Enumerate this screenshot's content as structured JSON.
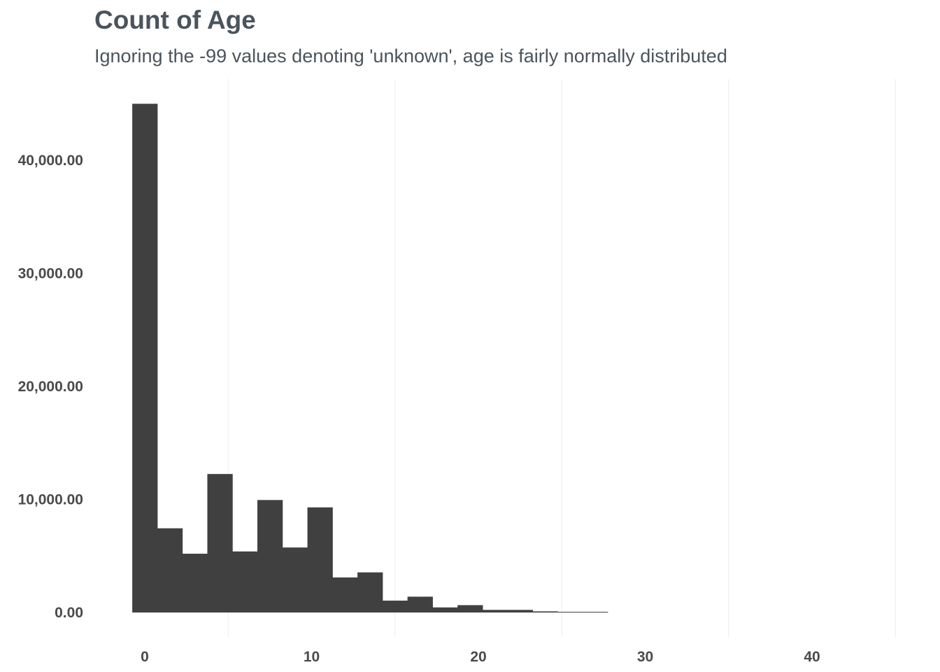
{
  "chart_data": {
    "type": "bar",
    "title": "Count of Age",
    "subtitle": "Ignoring the -99 values denoting 'unknown', age is fairly normally distributed",
    "xlabel": "",
    "ylabel": "",
    "bin_width": 1.5,
    "bins": [
      {
        "x0": -0.75,
        "x1": 0.75,
        "count": 45000
      },
      {
        "x0": 0.75,
        "x1": 2.25,
        "count": 7450
      },
      {
        "x0": 2.25,
        "x1": 3.75,
        "count": 5200
      },
      {
        "x0": 3.75,
        "x1": 5.25,
        "count": 12250
      },
      {
        "x0": 5.25,
        "x1": 6.75,
        "count": 5400
      },
      {
        "x0": 6.75,
        "x1": 8.25,
        "count": 9950
      },
      {
        "x0": 8.25,
        "x1": 9.75,
        "count": 5750
      },
      {
        "x0": 9.75,
        "x1": 11.25,
        "count": 9300
      },
      {
        "x0": 11.25,
        "x1": 12.75,
        "count": 3100
      },
      {
        "x0": 12.75,
        "x1": 14.25,
        "count": 3550
      },
      {
        "x0": 14.25,
        "x1": 15.75,
        "count": 1050
      },
      {
        "x0": 15.75,
        "x1": 17.25,
        "count": 1400
      },
      {
        "x0": 17.25,
        "x1": 18.75,
        "count": 450
      },
      {
        "x0": 18.75,
        "x1": 20.25,
        "count": 650
      },
      {
        "x0": 20.25,
        "x1": 21.75,
        "count": 230
      },
      {
        "x0": 21.75,
        "x1": 23.25,
        "count": 230
      },
      {
        "x0": 23.25,
        "x1": 24.75,
        "count": 100
      },
      {
        "x0": 24.75,
        "x1": 26.25,
        "count": 60
      },
      {
        "x0": 26.25,
        "x1": 27.75,
        "count": 40
      }
    ],
    "x_ticks": [
      0,
      10,
      20,
      30,
      40
    ],
    "x_tick_labels": [
      "0",
      "10",
      "20",
      "30",
      "40"
    ],
    "y_ticks": [
      0,
      10000,
      20000,
      30000,
      40000
    ],
    "y_tick_labels": [
      "0.00",
      "10,000.00",
      "20,000.00",
      "30,000.00",
      "40,000.00"
    ],
    "xlim": [
      -1.5,
      45
    ],
    "ylim": [
      0,
      45000
    ],
    "grid": "vertical-minor",
    "bar_color": "#404040",
    "grid_color": "#ebebeb",
    "text_color": "#4b545c"
  }
}
